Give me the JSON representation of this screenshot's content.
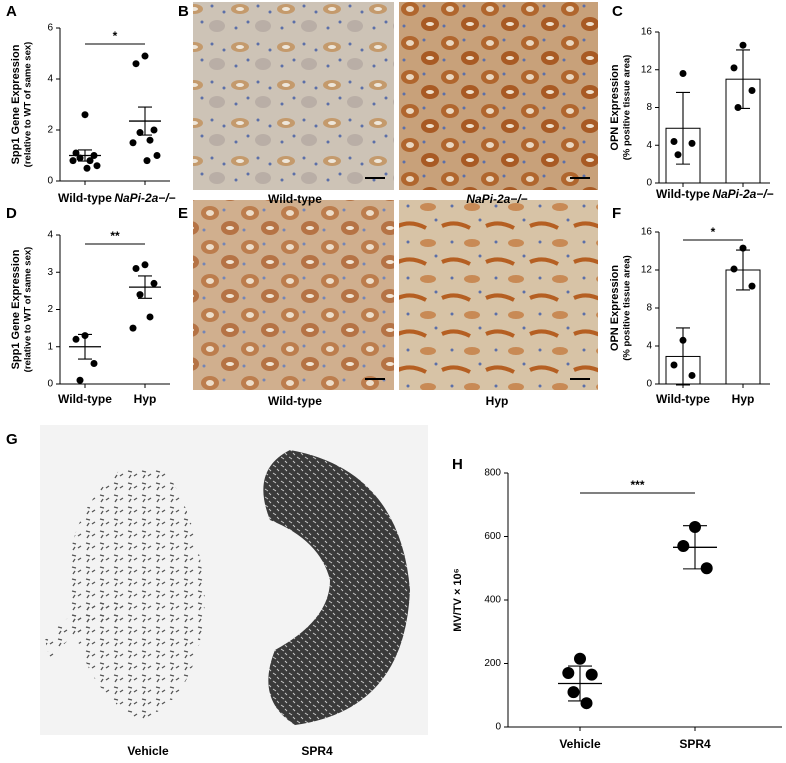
{
  "chart_data": [
    {
      "panel": "A",
      "type": "dot",
      "ylabel": "Spp1 Gene Expression",
      "ylabel2": "(relative to WT of same sex)",
      "categories": [
        "Wild-type",
        "NaPi-2a−/−"
      ],
      "points": [
        [
          2.6,
          1.1,
          1.0,
          0.9,
          0.8,
          0.8,
          0.6,
          0.5
        ],
        [
          4.9,
          4.6,
          2.0,
          1.9,
          1.6,
          1.5,
          1.0,
          0.8
        ]
      ],
      "mean": [
        1.0,
        2.35
      ],
      "error": [
        0.22,
        0.55
      ],
      "significance": "*",
      "ylim": [
        0,
        6
      ],
      "yticks": [
        0,
        2,
        4,
        6
      ],
      "color": "#000000"
    },
    {
      "panel": "C",
      "type": "bar",
      "ylabel": "OPN Expression",
      "ylabel2": "(% positive tissue area)",
      "categories": [
        "Wild-type",
        "NaPi-2a−/−"
      ],
      "points": [
        [
          11.6,
          4.4,
          4.2,
          3.0
        ],
        [
          14.6,
          12.2,
          9.8,
          8.0
        ]
      ],
      "mean": [
        5.8,
        11.0
      ],
      "error": [
        3.8,
        3.1
      ],
      "ylim": [
        0,
        16
      ],
      "yticks": [
        0,
        4,
        8,
        12,
        16
      ],
      "color": "#000000"
    },
    {
      "panel": "D",
      "type": "dot",
      "ylabel": "Spp1 Gene Expression",
      "ylabel2": "(relative to WT of same sex)",
      "categories": [
        "Wild-type",
        "Hyp"
      ],
      "points": [
        [
          1.3,
          1.2,
          0.55,
          0.1
        ],
        [
          3.2,
          3.1,
          2.7,
          2.4,
          1.8,
          1.5
        ]
      ],
      "mean": [
        1.0,
        2.6
      ],
      "error": [
        0.33,
        0.3
      ],
      "significance": "**",
      "ylim": [
        0,
        4
      ],
      "yticks": [
        0,
        1,
        2,
        3,
        4
      ],
      "color": "#000000"
    },
    {
      "panel": "F",
      "type": "bar",
      "ylabel": "OPN Expression",
      "ylabel2": "(% positive tissue area)",
      "categories": [
        "Wild-type",
        "Hyp"
      ],
      "points": [
        [
          4.6,
          2.0,
          0.9
        ],
        [
          14.3,
          12.1,
          10.3
        ]
      ],
      "mean": [
        2.9,
        12.0
      ],
      "error": [
        3.0,
        2.1
      ],
      "significance": "*",
      "ylim": [
        0,
        16
      ],
      "yticks": [
        0,
        4,
        8,
        12,
        16
      ],
      "color": "#000000"
    },
    {
      "panel": "H",
      "type": "dot",
      "ylabel": "MV/TV × 10⁶",
      "categories": [
        "Vehicle",
        "SPR4"
      ],
      "points": [
        [
          215,
          170,
          165,
          110,
          75
        ],
        [
          630,
          570,
          500
        ]
      ],
      "mean": [
        137,
        566
      ],
      "error": [
        55,
        68
      ],
      "significance": "***",
      "ylim": [
        0,
        800
      ],
      "yticks": [
        0,
        200,
        400,
        600,
        800
      ],
      "color": "#000000"
    }
  ],
  "images": [
    {
      "panel": "B",
      "labels": [
        "Wild-type",
        "NaPi-2a−/−"
      ]
    },
    {
      "panel": "E",
      "labels": [
        "Wild-type",
        "Hyp"
      ]
    },
    {
      "panel": "G",
      "labels": [
        "Vehicle",
        "SPR4"
      ]
    }
  ]
}
